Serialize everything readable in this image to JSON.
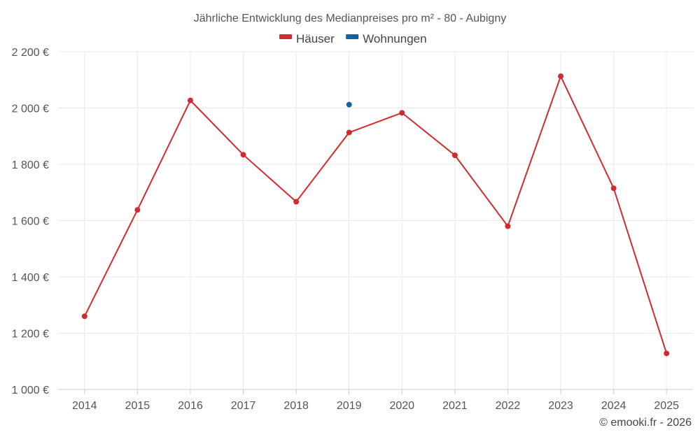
{
  "chart_data": {
    "type": "line",
    "title": "Jährliche Entwicklung des Medianpreises pro m² - 80 - Aubigny",
    "categories": [
      "2014",
      "2015",
      "2016",
      "2017",
      "2018",
      "2019",
      "2020",
      "2021",
      "2022",
      "2023",
      "2024",
      "2025"
    ],
    "series": [
      {
        "name": "Häuser",
        "color": "#d42a2f",
        "values": [
          1260,
          1638,
          2027,
          1834,
          1667,
          1913,
          1983,
          1832,
          1580,
          2113,
          1715,
          1128
        ]
      },
      {
        "name": "Wohnungen",
        "color": "#1062a0",
        "values": [
          null,
          null,
          null,
          null,
          null,
          2012,
          null,
          null,
          null,
          null,
          null,
          null
        ]
      }
    ],
    "ylim": [
      1000,
      2200
    ],
    "yticks": [
      1000,
      1200,
      1400,
      1600,
      1800,
      2000,
      2200
    ],
    "ytick_labels": [
      "1 000 €",
      "1 200 €",
      "1 400 €",
      "1 600 €",
      "1 800 €",
      "2 000 €",
      "2 200 €"
    ],
    "grid": true,
    "legend_position": "top-center",
    "xlabel": "",
    "ylabel": ""
  },
  "credit": "© emooki.fr - 2026"
}
